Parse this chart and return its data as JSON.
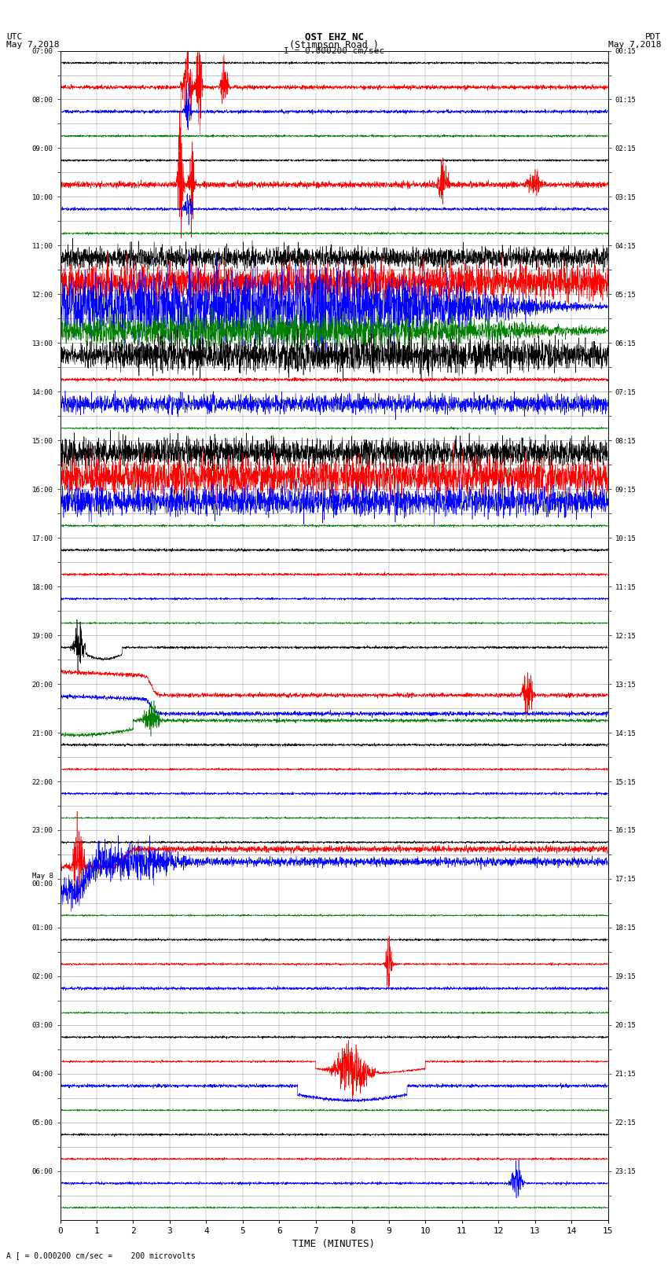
{
  "title_line1": "OST EHZ NC",
  "title_line2": "(Stimpson Road )",
  "title_scale": "I = 0.000200 cm/sec",
  "label_utc": "UTC",
  "label_pdt": "PDT",
  "date_left": "May 7,2018",
  "date_right": "May 7,2018",
  "xlabel": "TIME (MINUTES)",
  "footer": "A [ = 0.000200 cm/sec =    200 microvolts",
  "x_min": 0,
  "x_max": 15,
  "trace_colors": [
    "black",
    "red",
    "blue",
    "green"
  ],
  "background_color": "white",
  "grid_color": "#999999",
  "utc_labels": [
    "07:00",
    "",
    "08:00",
    "",
    "09:00",
    "",
    "10:00",
    "",
    "11:00",
    "",
    "12:00",
    "",
    "13:00",
    "",
    "14:00",
    "",
    "15:00",
    "",
    "16:00",
    "",
    "17:00",
    "",
    "18:00",
    "",
    "19:00",
    "",
    "20:00",
    "",
    "21:00",
    "",
    "22:00",
    "",
    "23:00",
    "",
    "May 8\n00:00",
    "",
    "01:00",
    "",
    "02:00",
    "",
    "03:00",
    "",
    "04:00",
    "",
    "05:00",
    "",
    "06:00",
    ""
  ],
  "pdt_labels": [
    "00:15",
    "",
    "01:15",
    "",
    "02:15",
    "",
    "03:15",
    "",
    "04:15",
    "",
    "05:15",
    "",
    "06:15",
    "",
    "07:15",
    "",
    "08:15",
    "",
    "09:15",
    "",
    "10:15",
    "",
    "11:15",
    "",
    "12:15",
    "",
    "13:15",
    "",
    "14:15",
    "",
    "15:15",
    "",
    "16:15",
    "",
    "17:15",
    "",
    "18:15",
    "",
    "19:15",
    "",
    "20:15",
    "",
    "21:15",
    "",
    "22:15",
    "",
    "23:15",
    ""
  ],
  "num_rows": 48,
  "base_noise": 0.04,
  "num_points": 3000
}
